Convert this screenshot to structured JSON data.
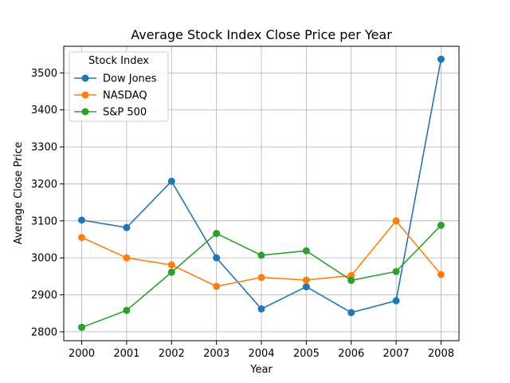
{
  "chart_data": {
    "type": "line",
    "title": "Average Stock Index Close Price per Year",
    "xlabel": "Year",
    "ylabel": "Average Close Price",
    "x": [
      2000,
      2001,
      2002,
      2003,
      2004,
      2005,
      2006,
      2007,
      2008
    ],
    "x_tick_labels": [
      "2000",
      "2001",
      "2002",
      "2003",
      "2004",
      "2005",
      "2006",
      "2007",
      "2008"
    ],
    "y_ticks": [
      2800,
      2900,
      3000,
      3100,
      3200,
      3300,
      3400,
      3500
    ],
    "y_tick_labels": [
      "2800",
      "2900",
      "3000",
      "3100",
      "3200",
      "3300",
      "3400",
      "3500"
    ],
    "xlim": [
      1999.6,
      2008.4
    ],
    "ylim": [
      2776,
      3572
    ],
    "grid": true,
    "legend": {
      "title": "Stock Index",
      "placement": "upper-left"
    },
    "series": [
      {
        "name": "Dow Jones",
        "color": "#1f77b4",
        "values": [
          3102,
          3082,
          3207,
          3000,
          2862,
          2922,
          2852,
          2884,
          3537
        ]
      },
      {
        "name": "NASDAQ",
        "color": "#ff7f0e",
        "values": [
          3055,
          3000,
          2981,
          2923,
          2947,
          2940,
          2952,
          3100,
          2955
        ]
      },
      {
        "name": "S&P 500",
        "color": "#2ca02c",
        "values": [
          2812,
          2858,
          2961,
          3066,
          3007,
          3019,
          2939,
          2963,
          3088
        ]
      }
    ]
  }
}
